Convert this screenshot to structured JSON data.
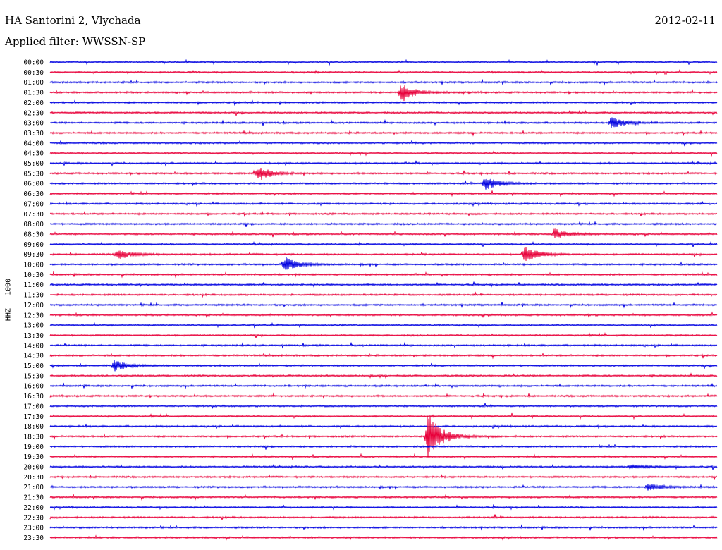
{
  "header": {
    "station": "HA Santorini 2, Vlychada",
    "filter": "Applied filter: WWSSN-SP",
    "date": "2012-02-11"
  },
  "chart_data": {
    "type": "line",
    "ylabel": "HHZ - 1000",
    "row_labels": [
      "00:00",
      "00:30",
      "01:00",
      "01:30",
      "02:00",
      "02:30",
      "03:00",
      "03:30",
      "04:00",
      "04:30",
      "05:00",
      "05:30",
      "06:00",
      "06:30",
      "07:00",
      "07:30",
      "08:00",
      "08:30",
      "09:00",
      "09:30",
      "10:00",
      "10:30",
      "11:00",
      "11:30",
      "12:00",
      "12:30",
      "13:00",
      "13:30",
      "14:00",
      "14:30",
      "15:00",
      "15:30",
      "16:00",
      "16:30",
      "17:00",
      "17:30",
      "18:00",
      "18:30",
      "19:00",
      "19:30",
      "20:00",
      "20:30",
      "21:00",
      "21:30",
      "22:00",
      "22:30",
      "23:00",
      "23:30"
    ],
    "colors": [
      "#0000e0",
      "#e8003a"
    ],
    "events": [
      {
        "row": "01:30",
        "x_fraction": 0.525,
        "amplitude": 16
      },
      {
        "row": "03:00",
        "x_fraction": 0.84,
        "amplitude": 9
      },
      {
        "row": "05:30",
        "x_fraction": 0.31,
        "amplitude": 12
      },
      {
        "row": "06:00",
        "x_fraction": 0.65,
        "amplitude": 11
      },
      {
        "row": "08:30",
        "x_fraction": 0.755,
        "amplitude": 8
      },
      {
        "row": "09:30",
        "x_fraction": 0.71,
        "amplitude": 12
      },
      {
        "row": "09:30",
        "x_fraction": 0.1,
        "amplitude": 8
      },
      {
        "row": "10:00",
        "x_fraction": 0.35,
        "amplitude": 12
      },
      {
        "row": "15:00",
        "x_fraction": 0.095,
        "amplitude": 8
      },
      {
        "row": "18:30",
        "x_fraction": 0.565,
        "amplitude": 38
      },
      {
        "row": "21:00",
        "x_fraction": 0.895,
        "amplitude": 6
      },
      {
        "row": "20:00",
        "x_fraction": 0.87,
        "amplitude": 4
      }
    ]
  }
}
